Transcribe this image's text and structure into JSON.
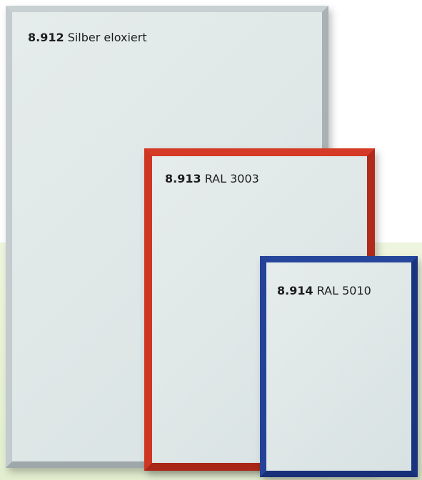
{
  "frames": [
    {
      "code": "8.912",
      "label": "Silber eloxiert"
    },
    {
      "code": "8.913",
      "label": "RAL 3003"
    },
    {
      "code": "8.914",
      "label": "RAL 5010"
    }
  ]
}
